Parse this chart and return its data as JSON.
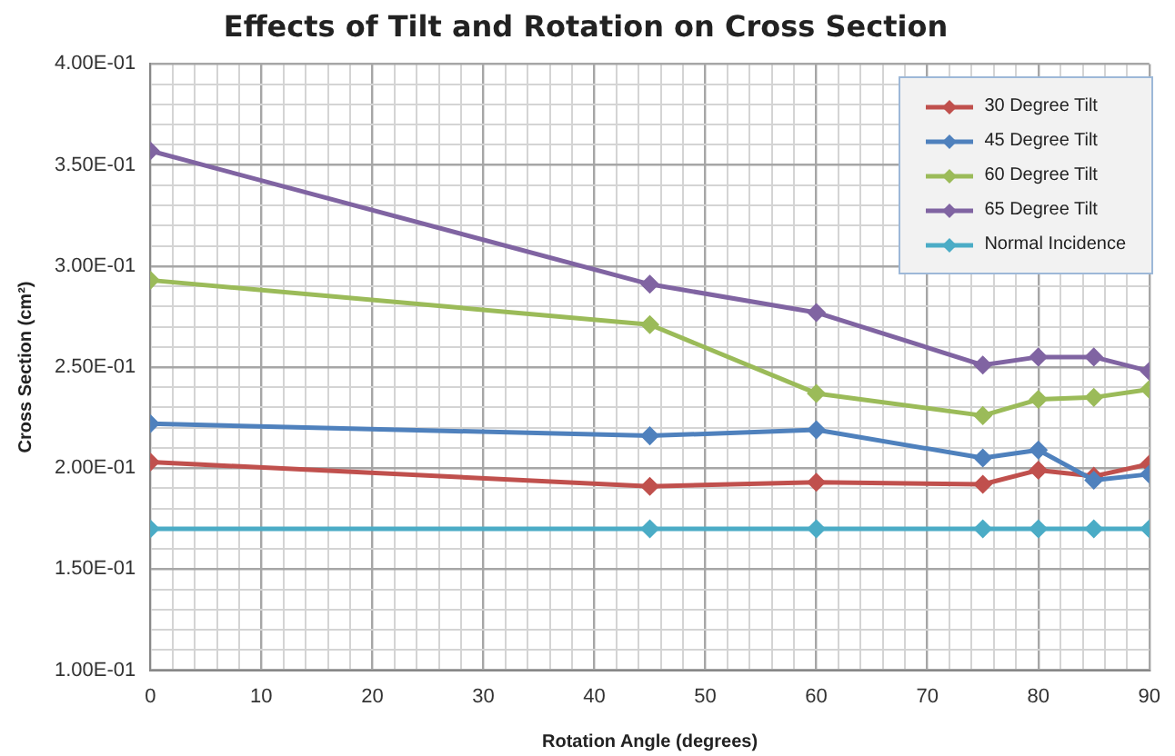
{
  "chart_data": {
    "type": "line",
    "title": "Effects of Tilt and Rotation on Cross Section",
    "xlabel": "Rotation Angle (degrees)",
    "ylabel": "Cross Section (cm²)",
    "x": [
      0,
      45,
      60,
      75,
      80,
      85,
      90
    ],
    "series": [
      {
        "name": "30 Degree Tilt",
        "color": "#c0504d",
        "values": [
          0.203,
          0.191,
          0.193,
          0.192,
          0.199,
          0.196,
          0.202
        ]
      },
      {
        "name": "45 Degree Tilt",
        "color": "#4f81bd",
        "values": [
          0.222,
          0.216,
          0.219,
          0.205,
          0.209,
          0.194,
          0.197
        ]
      },
      {
        "name": "60 Degree Tilt",
        "color": "#9bbb59",
        "values": [
          0.293,
          0.271,
          0.237,
          0.226,
          0.234,
          0.235,
          0.239
        ]
      },
      {
        "name": "65 Degree Tilt",
        "color": "#8064a2",
        "values": [
          0.357,
          0.291,
          0.277,
          0.251,
          0.255,
          0.255,
          0.248
        ]
      },
      {
        "name": "Normal Incidence",
        "color": "#4bacc6",
        "values": [
          0.17,
          0.17,
          0.17,
          0.17,
          0.17,
          0.17,
          0.17
        ]
      }
    ],
    "xlim": [
      0,
      90
    ],
    "xticks": [
      0,
      {
        "value": 2,
        "label": null
      },
      {
        "value": 4,
        "label": null
      },
      {
        "value": 6,
        "label": null
      },
      {
        "value": 8,
        "label": null
      },
      10,
      {
        "value": 12,
        "label": null
      },
      {
        "value": 14,
        "label": null
      },
      {
        "value": 16,
        "label": null
      },
      {
        "value": 18,
        "label": null
      },
      20,
      {
        "value": 22,
        "label": null
      },
      {
        "value": 24,
        "label": null
      },
      {
        "value": 26,
        "label": null
      },
      {
        "value": 28,
        "label": null
      },
      30,
      {
        "value": 32,
        "label": null
      },
      {
        "value": 34,
        "label": null
      },
      {
        "value": 36,
        "label": null
      },
      {
        "value": 38,
        "label": null
      },
      40,
      {
        "value": 42,
        "label": null
      },
      {
        "value": 44,
        "label": null
      },
      {
        "value": 46,
        "label": null
      },
      {
        "value": 48,
        "label": null
      },
      50,
      {
        "value": 52,
        "label": null
      },
      {
        "value": 54,
        "label": null
      },
      {
        "value": 56,
        "label": null
      },
      {
        "value": 58,
        "label": null
      },
      60,
      {
        "value": 62,
        "label": null
      },
      {
        "value": 64,
        "label": null
      },
      {
        "value": 66,
        "label": null
      },
      {
        "value": 68,
        "label": null
      },
      70,
      {
        "value": 72,
        "label": null
      },
      {
        "value": 74,
        "label": null
      },
      {
        "value": 76,
        "label": null
      },
      {
        "value": 78,
        "label": null
      },
      80,
      {
        "value": 82,
        "label": null
      },
      {
        "value": 84,
        "label": null
      },
      {
        "value": 86,
        "label": null
      },
      {
        "value": 88,
        "label": null
      },
      90
    ],
    "ylim": [
      0.1,
      0.4
    ],
    "yticks": [
      {
        "value": 0.1,
        "label": "1.00E-01"
      },
      {
        "value": 0.11,
        "label": null
      },
      {
        "value": 0.12,
        "label": null
      },
      {
        "value": 0.13,
        "label": null
      },
      {
        "value": 0.14,
        "label": null
      },
      {
        "value": 0.15,
        "label": "1.50E-01"
      },
      {
        "value": 0.16,
        "label": null
      },
      {
        "value": 0.18,
        "label": null
      },
      {
        "value": 0.19,
        "label": null
      },
      {
        "value": 0.2,
        "label": "2.00E-01"
      },
      {
        "value": 0.21,
        "label": null
      },
      {
        "value": 0.22,
        "label": null
      },
      {
        "value": 0.23,
        "label": null
      },
      {
        "value": 0.24,
        "label": null
      },
      {
        "value": 0.25,
        "label": "2.50E-01"
      },
      {
        "value": 0.26,
        "label": null
      },
      {
        "value": 0.27,
        "label": null
      },
      {
        "value": 0.28,
        "label": null
      },
      {
        "value": 0.29,
        "label": null
      },
      {
        "value": 0.3,
        "label": "3.00E-01"
      },
      {
        "value": 0.31,
        "label": null
      },
      {
        "value": 0.32,
        "label": null
      },
      {
        "value": 0.33,
        "label": null
      },
      {
        "value": 0.34,
        "label": null
      },
      {
        "value": 0.35,
        "label": "3.50E-01"
      },
      {
        "value": 0.36,
        "label": null
      },
      {
        "value": 0.37,
        "label": null
      },
      {
        "value": 0.38,
        "label": null
      },
      {
        "value": 0.39,
        "label": null
      },
      {
        "value": 0.4,
        "label": "4.00E-01"
      }
    ],
    "grid": true,
    "legend": "top right",
    "marker": "diamond",
    "line_style": "solid"
  }
}
